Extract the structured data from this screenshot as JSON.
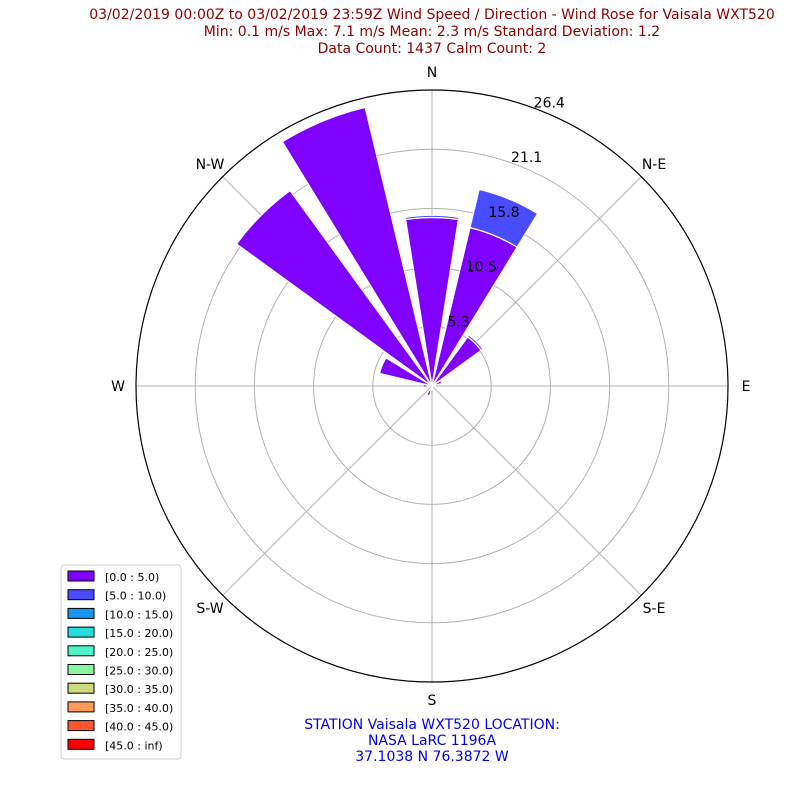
{
  "title": {
    "line1": "03/02/2019 00:00Z to 03/02/2019 23:59Z Wind Speed / Direction - Wind Rose for Vaisala WXT520",
    "line2": "Min: 0.1 m/s   Max: 7.1 m/s   Mean: 2.3 m/s  Standard Deviation: 1.2",
    "line3": "Data Count: 1437  Calm Count:  2"
  },
  "footer": {
    "line1": "STATION Vaisala WXT520 LOCATION:",
    "line2": "NASA LaRC 1196A",
    "line3": "37.1038 N 76.3872 W"
  },
  "colors": {
    "title": "#8b0000",
    "footer": "#0000ee",
    "grid": "#b0b0b0"
  },
  "chart_data": {
    "type": "wind_rose",
    "directions": [
      "N",
      "NNE",
      "NE",
      "ENE",
      "E",
      "ESE",
      "SE",
      "SSE",
      "S",
      "SSW",
      "SW",
      "WSW",
      "W",
      "WNW",
      "NW",
      "NNW"
    ],
    "direction_labels": [
      {
        "label": "N",
        "angle_deg": 0
      },
      {
        "label": "N-E",
        "angle_deg": 45
      },
      {
        "label": "E",
        "angle_deg": 90
      },
      {
        "label": "S-E",
        "angle_deg": 135
      },
      {
        "label": "S",
        "angle_deg": 180
      },
      {
        "label": "S-W",
        "angle_deg": 225
      },
      {
        "label": "W",
        "angle_deg": 270
      },
      {
        "label": "N-W",
        "angle_deg": 315
      }
    ],
    "radial_ticks": [
      "5.3",
      "10.5",
      "15.8",
      "21.1",
      "26.4"
    ],
    "radial_tick_values": [
      5.27,
      10.54,
      15.81,
      21.08,
      26.35
    ],
    "rmax": 26.35,
    "legend_position": "lower-left",
    "series": [
      {
        "name": "[0.0 : 5.0)",
        "color": "#7f00ff",
        "values": [
          15.0,
          14.5,
          5.4,
          0.9,
          0.3,
          0.0,
          0.0,
          0.0,
          0.3,
          0.9,
          0.0,
          0.0,
          0.8,
          4.8,
          21.5,
          25.5
        ]
      },
      {
        "name": "[5.0 : 10.0)",
        "color": "#4a4cff",
        "values": [
          0.2,
          3.5,
          0.2,
          0.0,
          0.0,
          0.0,
          0.0,
          0.0,
          0.0,
          0.0,
          0.0,
          0.0,
          0.0,
          0.0,
          0.0,
          0.0
        ]
      },
      {
        "name": "[10.0 : 15.0)",
        "color": "#1996f3",
        "values": [
          0,
          0,
          0,
          0,
          0,
          0,
          0,
          0,
          0,
          0,
          0,
          0,
          0,
          0,
          0,
          0
        ]
      },
      {
        "name": "[15.0 : 20.0)",
        "color": "#2adddd",
        "values": [
          0,
          0,
          0,
          0,
          0,
          0,
          0,
          0,
          0,
          0,
          0,
          0,
          0,
          0,
          0,
          0
        ]
      },
      {
        "name": "[20.0 : 25.0)",
        "color": "#4df4c9",
        "values": [
          0,
          0,
          0,
          0,
          0,
          0,
          0,
          0,
          0,
          0,
          0,
          0,
          0,
          0,
          0,
          0
        ]
      },
      {
        "name": "[25.0 : 30.0)",
        "color": "#89f79e",
        "values": [
          0,
          0,
          0,
          0,
          0,
          0,
          0,
          0,
          0,
          0,
          0,
          0,
          0,
          0,
          0,
          0
        ]
      },
      {
        "name": "[30.0 : 35.0)",
        "color": "#cddb7e",
        "values": [
          0,
          0,
          0,
          0,
          0,
          0,
          0,
          0,
          0,
          0,
          0,
          0,
          0,
          0,
          0,
          0
        ]
      },
      {
        "name": "[35.0 : 40.0)",
        "color": "#ff9a5a",
        "values": [
          0,
          0,
          0,
          0,
          0,
          0,
          0,
          0,
          0,
          0,
          0,
          0,
          0,
          0,
          0,
          0
        ]
      },
      {
        "name": "[40.0 : 45.0)",
        "color": "#ff5533",
        "values": [
          0,
          0,
          0,
          0,
          0,
          0,
          0,
          0,
          0,
          0,
          0,
          0,
          0,
          0,
          0,
          0
        ]
      },
      {
        "name": "[45.0 : inf)",
        "color": "#ff0000",
        "values": [
          0,
          0,
          0,
          0,
          0,
          0,
          0,
          0,
          0,
          0,
          0,
          0,
          0,
          0,
          0,
          0
        ]
      }
    ]
  }
}
